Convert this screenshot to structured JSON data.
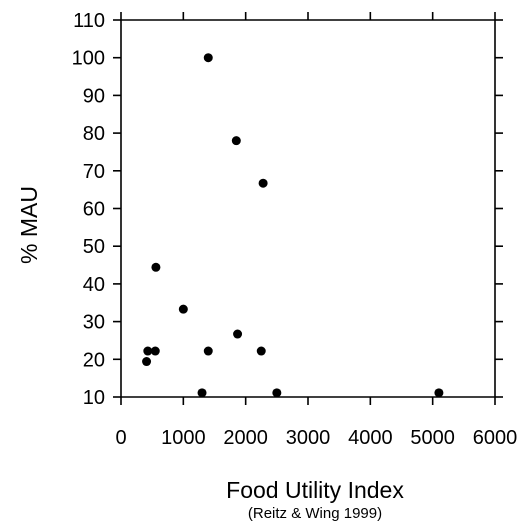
{
  "chart_data": {
    "type": "scatter",
    "xlabel": "Food Utility Index",
    "xlabel_sub": "(Reitz & Wing 1999)",
    "ylabel": "% MAU",
    "xlim": [
      0,
      6000
    ],
    "ylim": [
      10,
      110
    ],
    "xticks": [
      0,
      1000,
      2000,
      3000,
      4000,
      5000,
      6000
    ],
    "yticks": [
      10,
      20,
      30,
      40,
      50,
      60,
      70,
      80,
      90,
      100,
      110
    ],
    "grid": false,
    "points": [
      {
        "x": 1400,
        "y": 100
      },
      {
        "x": 1850,
        "y": 78
      },
      {
        "x": 2280,
        "y": 66.7
      },
      {
        "x": 560,
        "y": 44.4
      },
      {
        "x": 1000,
        "y": 33.3
      },
      {
        "x": 1870,
        "y": 26.7
      },
      {
        "x": 430,
        "y": 22.2
      },
      {
        "x": 550,
        "y": 22.2
      },
      {
        "x": 1400,
        "y": 22.2
      },
      {
        "x": 2250,
        "y": 22.2
      },
      {
        "x": 410,
        "y": 19.4
      },
      {
        "x": 1300,
        "y": 11.1
      },
      {
        "x": 2500,
        "y": 11.1
      },
      {
        "x": 5100,
        "y": 11.1
      }
    ]
  }
}
